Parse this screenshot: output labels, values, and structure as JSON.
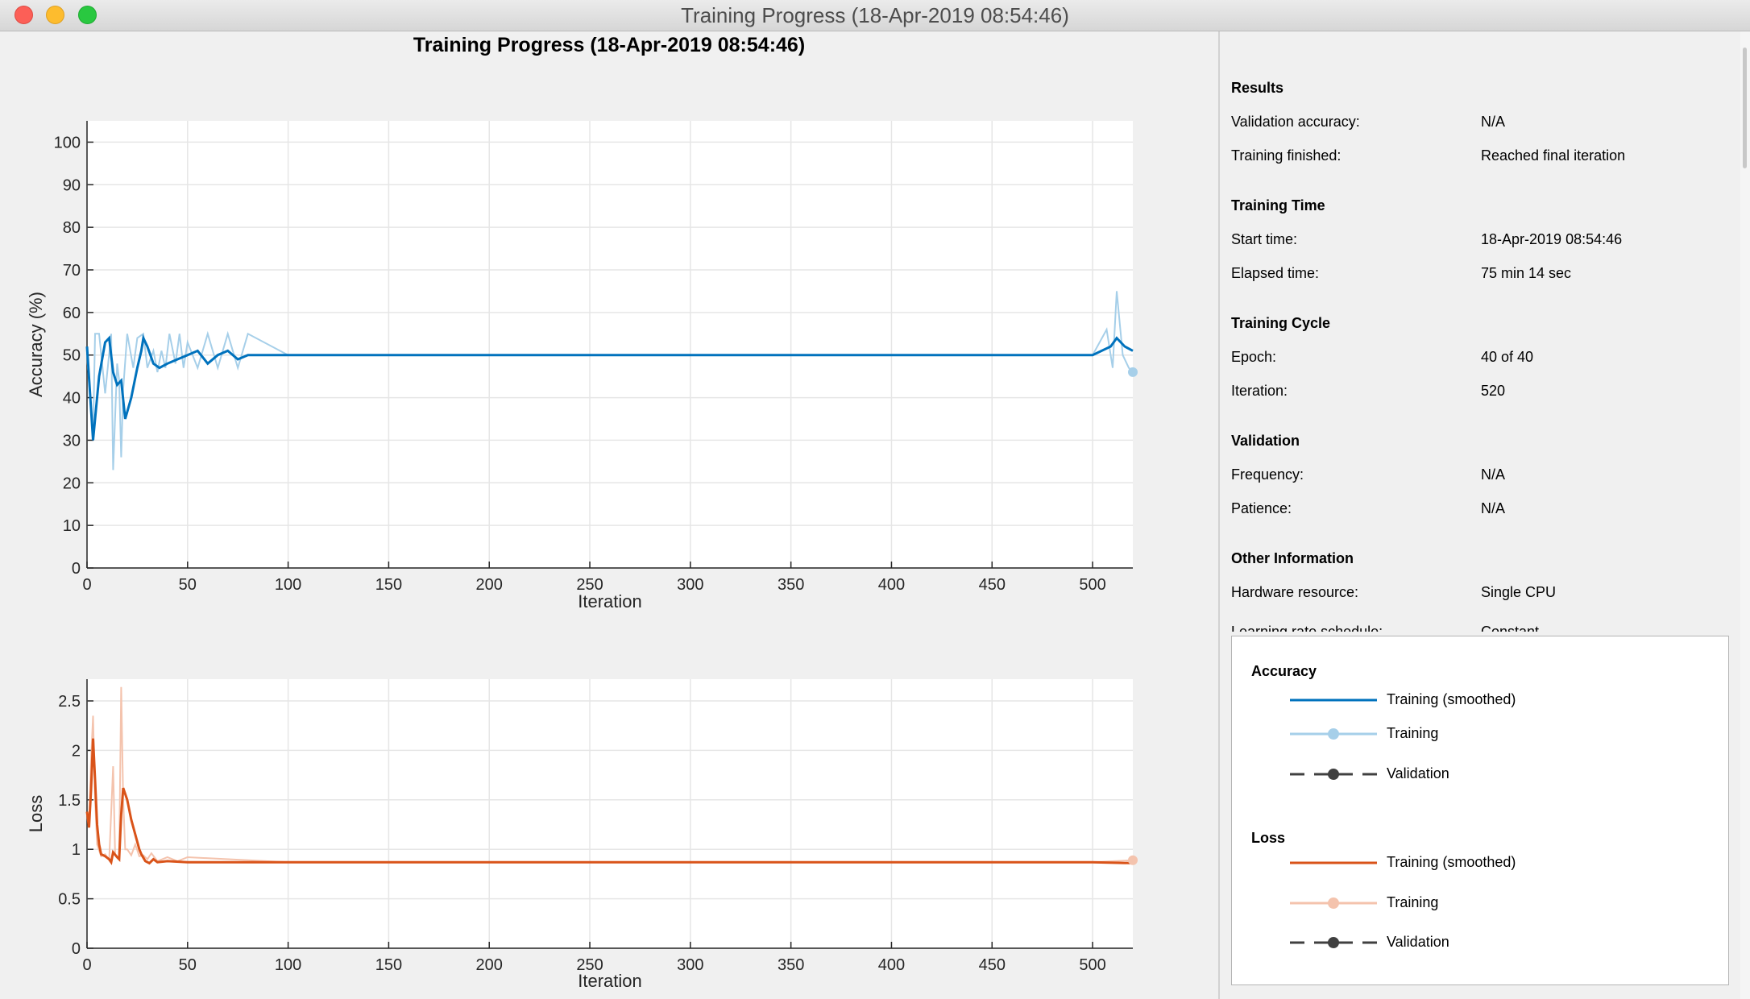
{
  "window": {
    "title": "Training Progress (18-Apr-2019 08:54:46)"
  },
  "figure": {
    "title": "Training Progress (18-Apr-2019 08:54:46)"
  },
  "colors": {
    "acc_smoothed": "#0072bd",
    "acc_raw": "#a6cfe9",
    "loss_smoothed": "#d95319",
    "loss_raw": "#f4c3ad",
    "validation": "#404040"
  },
  "chart_data": [
    {
      "type": "line",
      "title": "",
      "xlabel": "Iteration",
      "ylabel": "Accuracy (%)",
      "xlim": [
        0,
        520
      ],
      "ylim": [
        0,
        105
      ],
      "xticks": [
        0,
        50,
        100,
        150,
        200,
        250,
        300,
        350,
        400,
        450,
        500
      ],
      "yticks": [
        0,
        10,
        20,
        30,
        40,
        50,
        60,
        70,
        80,
        90,
        100
      ],
      "grid": true,
      "series": [
        {
          "name": "Training (smoothed)",
          "points": [
            [
              0,
              52
            ],
            [
              3,
              30
            ],
            [
              6,
              45
            ],
            [
              9,
              53
            ],
            [
              11,
              54
            ],
            [
              13,
              46
            ],
            [
              15,
              43
            ],
            [
              17,
              44
            ],
            [
              19,
              35
            ],
            [
              22,
              40
            ],
            [
              25,
              47
            ],
            [
              27,
              51
            ],
            [
              28,
              54
            ],
            [
              30,
              52
            ],
            [
              33,
              48
            ],
            [
              36,
              47
            ],
            [
              40,
              48
            ],
            [
              45,
              49
            ],
            [
              50,
              50
            ],
            [
              55,
              51
            ],
            [
              60,
              48
            ],
            [
              65,
              50
            ],
            [
              70,
              51
            ],
            [
              75,
              49
            ],
            [
              80,
              50
            ],
            [
              100,
              50
            ],
            [
              150,
              50
            ],
            [
              200,
              50
            ],
            [
              250,
              50
            ],
            [
              300,
              50
            ],
            [
              350,
              50
            ],
            [
              400,
              50
            ],
            [
              450,
              50
            ],
            [
              500,
              50
            ],
            [
              509,
              52
            ],
            [
              512,
              54
            ],
            [
              516,
              52
            ],
            [
              520,
              51
            ]
          ]
        },
        {
          "name": "Training",
          "points": [
            [
              0,
              50
            ],
            [
              3,
              31
            ],
            [
              4,
              55
            ],
            [
              6,
              55
            ],
            [
              9,
              41
            ],
            [
              12,
              55
            ],
            [
              13,
              23
            ],
            [
              15,
              48
            ],
            [
              16,
              44
            ],
            [
              17,
              26
            ],
            [
              18,
              42
            ],
            [
              20,
              55
            ],
            [
              23,
              47
            ],
            [
              25,
              54
            ],
            [
              28,
              55
            ],
            [
              30,
              47
            ],
            [
              33,
              51
            ],
            [
              35,
              46
            ],
            [
              37,
              51
            ],
            [
              39,
              47
            ],
            [
              41,
              55
            ],
            [
              44,
              48
            ],
            [
              46,
              55
            ],
            [
              48,
              47
            ],
            [
              50,
              53
            ],
            [
              55,
              47
            ],
            [
              60,
              55
            ],
            [
              65,
              47
            ],
            [
              70,
              55
            ],
            [
              75,
              47
            ],
            [
              80,
              55
            ],
            [
              100,
              50
            ],
            [
              150,
              50
            ],
            [
              200,
              50
            ],
            [
              250,
              50
            ],
            [
              300,
              50
            ],
            [
              350,
              50
            ],
            [
              400,
              50
            ],
            [
              450,
              50
            ],
            [
              500,
              50
            ],
            [
              507,
              56
            ],
            [
              510,
              47
            ],
            [
              512,
              65
            ],
            [
              515,
              50
            ],
            [
              518,
              47
            ],
            [
              520,
              46
            ]
          ]
        }
      ]
    },
    {
      "type": "line",
      "title": "",
      "xlabel": "Iteration",
      "ylabel": "Loss",
      "xlim": [
        0,
        520
      ],
      "ylim": [
        0,
        2.72
      ],
      "xticks": [
        0,
        50,
        100,
        150,
        200,
        250,
        300,
        350,
        400,
        450,
        500
      ],
      "yticks": [
        0,
        0.5,
        1,
        1.5,
        2,
        2.5
      ],
      "grid": true,
      "series": [
        {
          "name": "Training (smoothed)",
          "points": [
            [
              0,
              1.38
            ],
            [
              1,
              1.22
            ],
            [
              2,
              1.6
            ],
            [
              3,
              2.12
            ],
            [
              4,
              1.7
            ],
            [
              5,
              1.25
            ],
            [
              6,
              1.05
            ],
            [
              7,
              0.95
            ],
            [
              9,
              0.93
            ],
            [
              11,
              0.9
            ],
            [
              12,
              0.87
            ],
            [
              13,
              0.97
            ],
            [
              15,
              0.92
            ],
            [
              16,
              0.9
            ],
            [
              17,
              1.35
            ],
            [
              18,
              1.62
            ],
            [
              20,
              1.5
            ],
            [
              22,
              1.3
            ],
            [
              24,
              1.15
            ],
            [
              26,
              1.0
            ],
            [
              27,
              0.95
            ],
            [
              29,
              0.88
            ],
            [
              31,
              0.86
            ],
            [
              33,
              0.9
            ],
            [
              35,
              0.87
            ],
            [
              40,
              0.88
            ],
            [
              50,
              0.87
            ],
            [
              100,
              0.87
            ],
            [
              150,
              0.87
            ],
            [
              200,
              0.87
            ],
            [
              250,
              0.87
            ],
            [
              300,
              0.87
            ],
            [
              350,
              0.87
            ],
            [
              400,
              0.87
            ],
            [
              450,
              0.87
            ],
            [
              500,
              0.87
            ],
            [
              520,
              0.86
            ]
          ]
        },
        {
          "name": "Training",
          "points": [
            [
              0,
              1.35
            ],
            [
              1,
              1.25
            ],
            [
              2,
              1.9
            ],
            [
              3,
              2.35
            ],
            [
              4,
              1.5
            ],
            [
              5,
              1.05
            ],
            [
              7,
              0.93
            ],
            [
              9,
              0.95
            ],
            [
              11,
              0.89
            ],
            [
              13,
              1.84
            ],
            [
              14,
              0.95
            ],
            [
              15,
              0.92
            ],
            [
              16,
              0.9
            ],
            [
              17,
              2.64
            ],
            [
              18,
              1.5
            ],
            [
              19,
              1.0
            ],
            [
              20,
              1.0
            ],
            [
              22,
              0.94
            ],
            [
              24,
              1.05
            ],
            [
              26,
              0.93
            ],
            [
              28,
              0.94
            ],
            [
              30,
              0.9
            ],
            [
              32,
              0.96
            ],
            [
              35,
              0.88
            ],
            [
              40,
              0.92
            ],
            [
              45,
              0.88
            ],
            [
              50,
              0.92
            ],
            [
              100,
              0.87
            ],
            [
              200,
              0.87
            ],
            [
              300,
              0.87
            ],
            [
              400,
              0.87
            ],
            [
              500,
              0.87
            ],
            [
              520,
              0.89
            ]
          ]
        }
      ]
    }
  ],
  "panel": {
    "results": {
      "heading": "Results",
      "rows": [
        {
          "label": "Validation accuracy:",
          "value": "N/A"
        },
        {
          "label": "Training finished:",
          "value": "Reached final iteration"
        }
      ]
    },
    "training_time": {
      "heading": "Training Time",
      "rows": [
        {
          "label": "Start time:",
          "value": "18-Apr-2019 08:54:46"
        },
        {
          "label": "Elapsed time:",
          "value": "75 min 14 sec"
        }
      ]
    },
    "training_cycle": {
      "heading": "Training Cycle",
      "rows": [
        {
          "label": "Epoch:",
          "value": "40 of 40"
        },
        {
          "label": "Iteration:",
          "value": "520"
        }
      ]
    },
    "validation": {
      "heading": "Validation",
      "rows": [
        {
          "label": "Frequency:",
          "value": "N/A"
        },
        {
          "label": "Patience:",
          "value": "N/A"
        }
      ]
    },
    "other": {
      "heading": "Other Information",
      "rows": [
        {
          "label": "Hardware resource:",
          "value": "Single CPU"
        },
        {
          "label": "Learning rate schedule:",
          "value": "Constant"
        }
      ]
    }
  },
  "legend": {
    "accuracy": {
      "heading": "Accuracy",
      "items": [
        "Training (smoothed)",
        "Training",
        "Validation"
      ]
    },
    "loss": {
      "heading": "Loss",
      "items": [
        "Training (smoothed)",
        "Training",
        "Validation"
      ]
    }
  }
}
